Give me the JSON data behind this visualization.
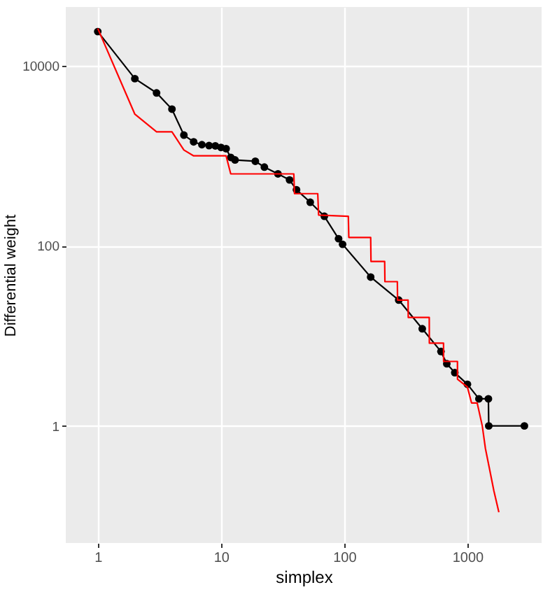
{
  "chart_data": {
    "type": "line",
    "xlabel": "simplex",
    "ylabel": "Differential weight",
    "log": "xy",
    "grid": true,
    "xlim": [
      0.55,
      4000
    ],
    "ylim": [
      0.05,
      45000
    ],
    "xticks": [
      1,
      10,
      100,
      1000
    ],
    "yticks": [
      1,
      100,
      10000
    ],
    "series": [
      {
        "color": "#000000",
        "marker": "circle",
        "x": [
          1,
          2,
          3,
          4,
          5,
          6,
          7,
          8,
          9,
          10,
          11,
          12,
          13,
          19,
          22.5,
          29,
          36,
          41,
          53,
          69,
          90,
          97,
          164,
          277,
          430,
          610,
          680,
          790,
          1000,
          1240,
          1480,
          1490,
          2900
        ],
        "values": [
          24000,
          7200,
          5000,
          3300,
          1700,
          1430,
          1330,
          1300,
          1290,
          1240,
          1200,
          960,
          900,
          870,
          750,
          630,
          540,
          420,
          305,
          213,
          120,
          104,
          45,
          25,
          12,
          6.7,
          4.9,
          3.9,
          2.9,
          2,
          2,
          1,
          1
        ]
      },
      {
        "color": "#ff0000",
        "marker": "none",
        "x": [
          1,
          2,
          3,
          4,
          5,
          6,
          11,
          12,
          39,
          39.5,
          61,
          62,
          108,
          109,
          164,
          165,
          213,
          214,
          270,
          271,
          330,
          331,
          490,
          491,
          640,
          641,
          830,
          831,
          1000,
          1080,
          1200,
          1320,
          1400,
          1500,
          1640,
          1800
        ],
        "values": [
          26000,
          2900,
          1850,
          1850,
          1160,
          1000,
          1000,
          630,
          630,
          380,
          380,
          220,
          213,
          124,
          124,
          67,
          67,
          40,
          40,
          25,
          25,
          16,
          16,
          8.3,
          8.3,
          5.2,
          5.2,
          3.3,
          2.7,
          1.8,
          1.8,
          1,
          0.56,
          0.35,
          0.19,
          0.11
        ]
      }
    ]
  }
}
